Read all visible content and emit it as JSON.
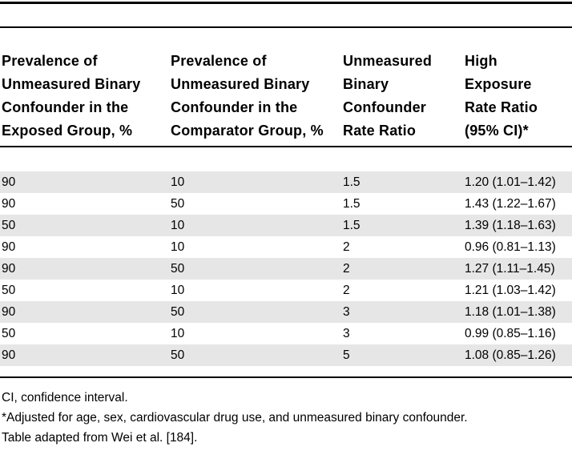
{
  "table": {
    "columns": [
      "Prevalence of Unmeasured Binary Confounder in the Exposed Group, %",
      "Prevalence of Unmeasured Binary Confounder in the Comparator Group, %",
      "Unmeasured Binary Confounder Rate Ratio",
      "High Exposure Rate Ratio (95% CI)*"
    ],
    "rows": [
      [
        "90",
        "10",
        "1.5",
        "1.20 (1.01–1.42)"
      ],
      [
        "90",
        "50",
        "1.5",
        "1.43 (1.22–1.67)"
      ],
      [
        "50",
        "10",
        "1.5",
        "1.39 (1.18–1.63)"
      ],
      [
        "90",
        "10",
        "2",
        "0.96 (0.81–1.13)"
      ],
      [
        "90",
        "50",
        "2",
        "1.27 (1.11–1.45)"
      ],
      [
        "50",
        "10",
        "2",
        "1.21 (1.03–1.42)"
      ],
      [
        "90",
        "50",
        "3",
        "1.18 (1.01–1.38)"
      ],
      [
        "50",
        "10",
        "3",
        "0.99 (0.85–1.16)"
      ],
      [
        "90",
        "50",
        "5",
        "1.08 (0.85–1.26)"
      ]
    ],
    "stripe_color": "#e6e6e6",
    "rule_color": "#000000"
  },
  "footnotes": [
    "CI, confidence interval.",
    "*Adjusted for age, sex, cardiovascular drug use, and unmeasured binary confounder.",
    "Table adapted from Wei et al. [184]."
  ]
}
